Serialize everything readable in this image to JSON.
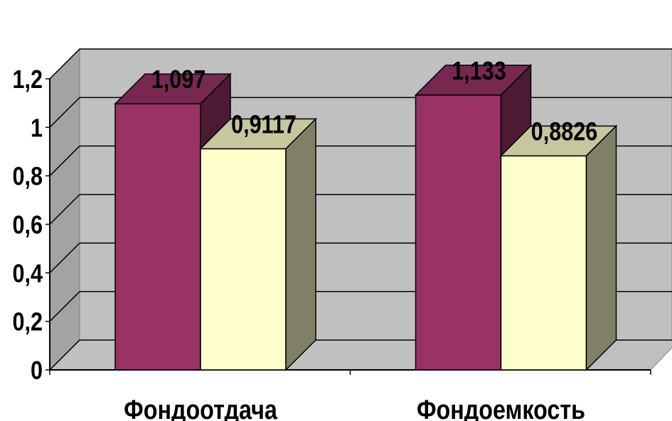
{
  "chart_data": {
    "type": "bar",
    "categories": [
      "Фондоотдача",
      "Фондоемкость"
    ],
    "series": [
      {
        "values": [
          1.097,
          1.133
        ],
        "color": "#993366"
      },
      {
        "values": [
          0.9117,
          0.8826
        ],
        "color": "#FFFFCC"
      }
    ],
    "data_labels": [
      [
        "1,097",
        "0,9117"
      ],
      [
        "1,133",
        "0,8826"
      ]
    ],
    "y_tick_labels": [
      "0",
      "0,2",
      "0,4",
      "0,6",
      "0,8",
      "1",
      "1,2"
    ],
    "ylim": [
      0,
      1.2
    ],
    "grid": true,
    "legend": "none",
    "style": "3d-clustered-column",
    "background_color": "#C0C0C0"
  }
}
